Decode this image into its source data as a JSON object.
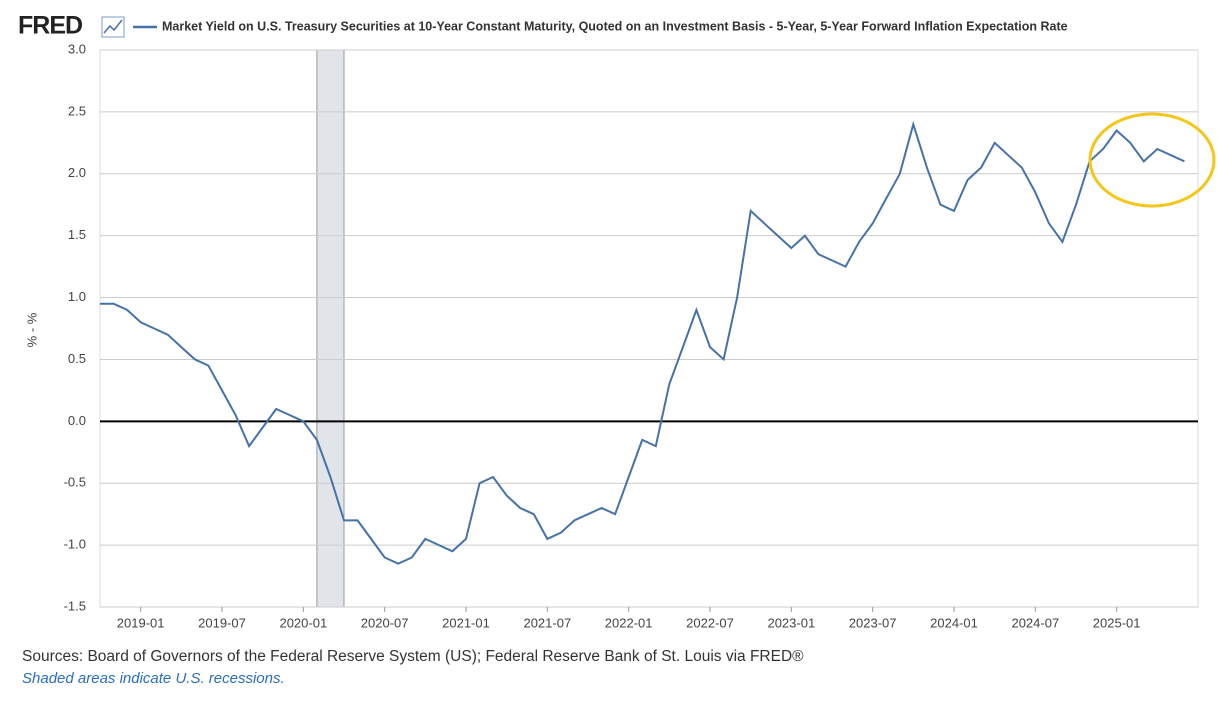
{
  "logo": "FRED",
  "chart_data": {
    "type": "line",
    "ylabel": "% - %",
    "x": [
      "2018-10",
      "2018-11",
      "2018-12",
      "2019-01",
      "2019-02",
      "2019-03",
      "2019-04",
      "2019-05",
      "2019-06",
      "2019-07",
      "2019-08",
      "2019-09",
      "2019-10",
      "2019-11",
      "2019-12",
      "2020-01",
      "2020-02",
      "2020-03",
      "2020-04",
      "2020-05",
      "2020-06",
      "2020-07",
      "2020-08",
      "2020-09",
      "2020-10",
      "2020-11",
      "2020-12",
      "2021-01",
      "2021-02",
      "2021-03",
      "2021-04",
      "2021-05",
      "2021-06",
      "2021-07",
      "2021-08",
      "2021-09",
      "2021-10",
      "2021-11",
      "2021-12",
      "2022-01",
      "2022-02",
      "2022-03",
      "2022-04",
      "2022-05",
      "2022-06",
      "2022-07",
      "2022-08",
      "2022-09",
      "2022-10",
      "2022-11",
      "2022-12",
      "2023-01",
      "2023-02",
      "2023-03",
      "2023-04",
      "2023-05",
      "2023-06",
      "2023-07",
      "2023-08",
      "2023-09",
      "2023-10",
      "2023-11",
      "2023-12",
      "2024-01",
      "2024-02",
      "2024-03",
      "2024-04",
      "2024-05",
      "2024-06",
      "2024-07",
      "2024-08",
      "2024-09",
      "2024-10",
      "2024-11",
      "2024-12",
      "2025-01",
      "2025-02",
      "2025-03",
      "2025-04",
      "2025-05",
      "2025-06"
    ],
    "series": [
      {
        "name": "Market Yield on U.S. Treasury Securities at 10-Year Constant Maturity, Quoted on an Investment Basis - 5-Year, 5-Year Forward Inflation Expectation Rate",
        "color": "#4572a7",
        "values": [
          0.95,
          0.95,
          0.9,
          0.8,
          0.75,
          0.7,
          0.6,
          0.5,
          0.45,
          0.25,
          0.05,
          -0.2,
          -0.05,
          0.1,
          0.05,
          0.0,
          -0.15,
          -0.45,
          -0.8,
          -0.8,
          -0.95,
          -1.1,
          -1.15,
          -1.1,
          -0.95,
          -1.0,
          -1.05,
          -0.95,
          -0.5,
          -0.45,
          -0.6,
          -0.7,
          -0.75,
          -0.95,
          -0.9,
          -0.8,
          -0.75,
          -0.7,
          -0.75,
          -0.45,
          -0.15,
          -0.2,
          0.3,
          0.6,
          0.9,
          0.6,
          0.5,
          1.0,
          1.7,
          1.6,
          1.5,
          1.4,
          1.5,
          1.35,
          1.3,
          1.25,
          1.45,
          1.6,
          1.8,
          2.0,
          2.4,
          2.05,
          1.75,
          1.7,
          1.95,
          2.05,
          2.25,
          2.15,
          2.05,
          1.85,
          1.6,
          1.45,
          1.75,
          2.1,
          2.2,
          2.35,
          2.25,
          2.1,
          2.2,
          2.15,
          2.1
        ]
      }
    ],
    "xlim": [
      "2018-10",
      "2025-07"
    ],
    "xticks": [
      "2019-01",
      "2019-07",
      "2020-01",
      "2020-07",
      "2021-01",
      "2021-07",
      "2022-01",
      "2022-07",
      "2023-01",
      "2023-07",
      "2024-01",
      "2024-07",
      "2025-01"
    ],
    "ylim": [
      -1.5,
      3.0
    ],
    "yticks": [
      {
        "value": -1.5,
        "label": "-1.5"
      },
      {
        "value": -1,
        "label": "-1.0"
      },
      -0.5,
      {
        "value": 0,
        "label": "0.0"
      },
      0.5,
      {
        "value": 1,
        "label": "1.0"
      },
      1.5,
      {
        "value": 2,
        "label": "2.0"
      },
      2.5,
      {
        "value": 3,
        "label": "3.0"
      }
    ],
    "grid": true,
    "recessions": [
      {
        "start": "2020-02",
        "end": "2020-04"
      }
    ],
    "recession_color": "#e1e5ea",
    "sources": "Sources: Board of Governors of the Federal Reserve System (US); Federal Reserve Bank of St. Louis via FRED®",
    "recession_note": "Shaded areas indicate U.S. recessions."
  }
}
